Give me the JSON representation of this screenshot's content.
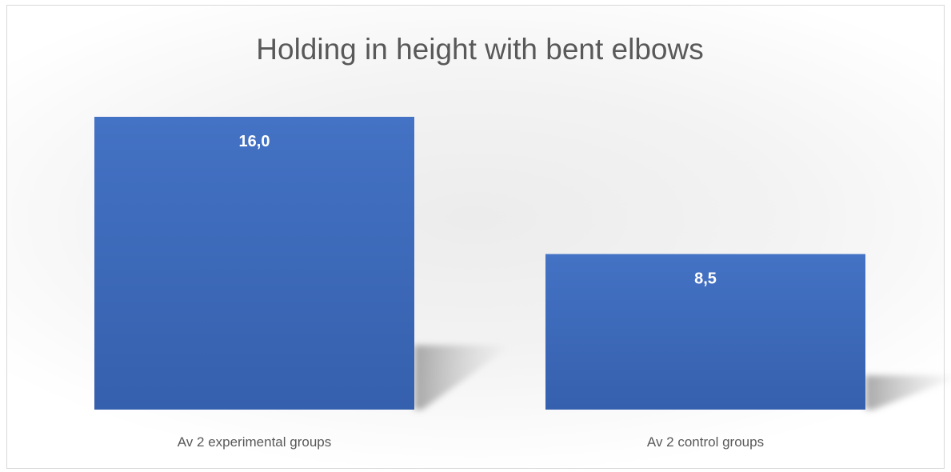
{
  "chart_data": {
    "type": "bar",
    "title": "Holding in height with bent elbows",
    "categories": [
      "Av 2 experimental groups",
      "Av 2 control groups"
    ],
    "values": [
      16.0,
      8.5
    ],
    "data_labels": [
      "16,0",
      "8,5"
    ],
    "xlabel": "",
    "ylabel": "",
    "ylim": [
      0,
      16.0
    ],
    "grid": false,
    "legend": "none",
    "colors": {
      "bar_top": "#4472c4",
      "bar_bottom": "#3560ad",
      "shadow": "#9a9a9a",
      "title": "#595959",
      "labels": "#595959"
    }
  }
}
